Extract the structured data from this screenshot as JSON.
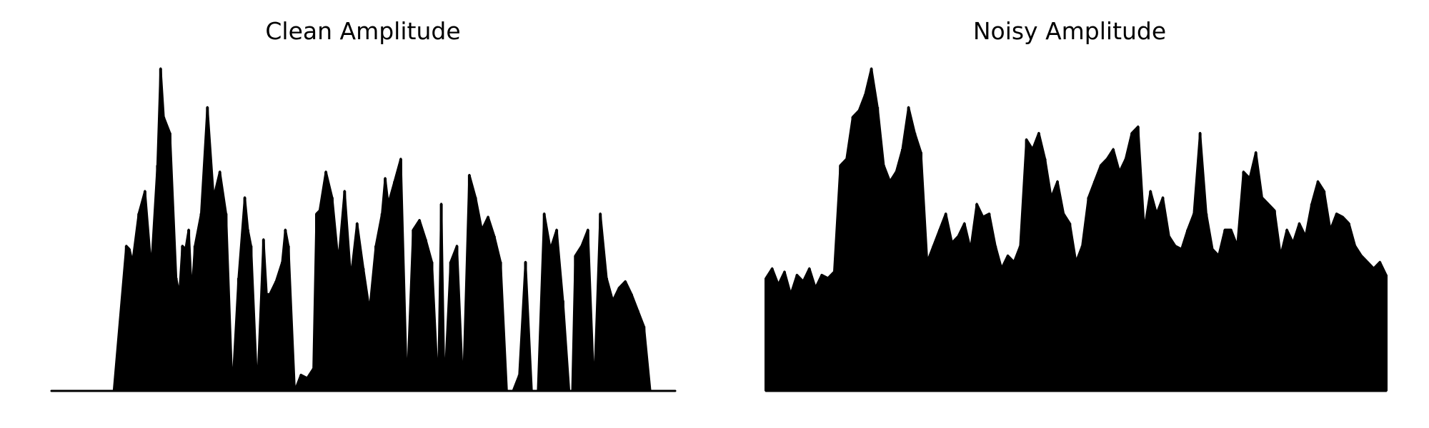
{
  "chart_data": [
    {
      "type": "area",
      "title": "Clean Amplitude",
      "xlabel": "",
      "ylabel": "",
      "axes_visible": false,
      "grid": false,
      "line_color": "#000000",
      "fill_color": "#000000",
      "x": [
        0.0,
        0.1,
        0.12,
        0.125,
        0.13,
        0.14,
        0.15,
        0.16,
        0.17,
        0.175,
        0.18,
        0.19,
        0.2,
        0.205,
        0.21,
        0.215,
        0.22,
        0.225,
        0.23,
        0.24,
        0.25,
        0.26,
        0.27,
        0.28,
        0.29,
        0.3,
        0.31,
        0.315,
        0.32,
        0.33,
        0.34,
        0.345,
        0.35,
        0.36,
        0.37,
        0.375,
        0.38,
        0.39,
        0.4,
        0.41,
        0.42,
        0.425,
        0.43,
        0.44,
        0.45,
        0.46,
        0.47,
        0.48,
        0.49,
        0.5,
        0.51,
        0.52,
        0.53,
        0.535,
        0.54,
        0.55,
        0.56,
        0.57,
        0.58,
        0.59,
        0.6,
        0.61,
        0.62,
        0.625,
        0.63,
        0.64,
        0.65,
        0.66,
        0.67,
        0.68,
        0.69,
        0.7,
        0.71,
        0.72,
        0.73,
        0.74,
        0.75,
        0.76,
        0.77,
        0.78,
        0.79,
        0.8,
        0.81,
        0.82,
        0.83,
        0.835,
        0.84,
        0.85,
        0.86,
        0.87,
        0.88,
        0.89,
        0.9,
        0.91,
        0.92,
        0.93,
        0.94,
        0.95,
        0.96,
        0.97,
        0.98,
        1.0
      ],
      "values": [
        0.0,
        0.0,
        0.45,
        0.44,
        0.4,
        0.55,
        0.62,
        0.38,
        0.7,
        1.0,
        0.85,
        0.8,
        0.35,
        0.3,
        0.45,
        0.44,
        0.5,
        0.3,
        0.45,
        0.55,
        0.88,
        0.6,
        0.68,
        0.55,
        0.0,
        0.35,
        0.6,
        0.5,
        0.45,
        0.0,
        0.47,
        0.3,
        0.3,
        0.34,
        0.4,
        0.5,
        0.45,
        0.0,
        0.05,
        0.04,
        0.07,
        0.55,
        0.56,
        0.68,
        0.6,
        0.4,
        0.62,
        0.35,
        0.52,
        0.38,
        0.25,
        0.45,
        0.55,
        0.66,
        0.58,
        0.65,
        0.72,
        0.0,
        0.5,
        0.53,
        0.47,
        0.4,
        0.0,
        0.58,
        0.0,
        0.4,
        0.45,
        0.0,
        0.67,
        0.6,
        0.5,
        0.54,
        0.48,
        0.4,
        0.0,
        0.0,
        0.05,
        0.4,
        0.0,
        0.0,
        0.55,
        0.44,
        0.5,
        0.28,
        0.0,
        0.0,
        0.42,
        0.45,
        0.5,
        0.0,
        0.55,
        0.35,
        0.28,
        0.32,
        0.34,
        0.3,
        0.25,
        0.2,
        0.0,
        0.0,
        0.0,
        0.0
      ],
      "ylim": [
        0,
        1.0
      ]
    },
    {
      "type": "area",
      "title": "Noisy Amplitude",
      "xlabel": "",
      "ylabel": "",
      "axes_visible": false,
      "grid": false,
      "line_color": "#000000",
      "fill_color": "#000000",
      "x": [
        0.0,
        0.01,
        0.02,
        0.03,
        0.04,
        0.05,
        0.06,
        0.07,
        0.08,
        0.09,
        0.1,
        0.11,
        0.12,
        0.13,
        0.14,
        0.15,
        0.16,
        0.17,
        0.18,
        0.19,
        0.2,
        0.21,
        0.22,
        0.23,
        0.24,
        0.25,
        0.26,
        0.27,
        0.28,
        0.29,
        0.3,
        0.31,
        0.32,
        0.33,
        0.34,
        0.35,
        0.36,
        0.37,
        0.38,
        0.39,
        0.4,
        0.41,
        0.42,
        0.43,
        0.44,
        0.45,
        0.46,
        0.47,
        0.48,
        0.49,
        0.5,
        0.51,
        0.52,
        0.53,
        0.54,
        0.55,
        0.56,
        0.57,
        0.58,
        0.59,
        0.6,
        0.61,
        0.62,
        0.63,
        0.64,
        0.65,
        0.66,
        0.67,
        0.68,
        0.69,
        0.7,
        0.71,
        0.72,
        0.73,
        0.74,
        0.75,
        0.76,
        0.77,
        0.78,
        0.79,
        0.8,
        0.81,
        0.82,
        0.83,
        0.84,
        0.85,
        0.86,
        0.87,
        0.88,
        0.89,
        0.9,
        0.91,
        0.92,
        0.93,
        0.94,
        0.95,
        0.96,
        0.97,
        0.98,
        0.99,
        1.0
      ],
      "values": [
        0.35,
        0.38,
        0.33,
        0.37,
        0.3,
        0.36,
        0.34,
        0.38,
        0.32,
        0.36,
        0.35,
        0.37,
        0.7,
        0.72,
        0.85,
        0.87,
        0.92,
        1.0,
        0.88,
        0.7,
        0.65,
        0.68,
        0.75,
        0.88,
        0.8,
        0.74,
        0.4,
        0.45,
        0.5,
        0.55,
        0.46,
        0.48,
        0.52,
        0.44,
        0.58,
        0.54,
        0.55,
        0.45,
        0.38,
        0.42,
        0.4,
        0.45,
        0.78,
        0.75,
        0.8,
        0.72,
        0.6,
        0.65,
        0.55,
        0.52,
        0.4,
        0.45,
        0.6,
        0.65,
        0.7,
        0.72,
        0.75,
        0.68,
        0.72,
        0.8,
        0.82,
        0.5,
        0.62,
        0.55,
        0.6,
        0.48,
        0.45,
        0.44,
        0.5,
        0.55,
        0.8,
        0.55,
        0.44,
        0.42,
        0.5,
        0.5,
        0.45,
        0.68,
        0.66,
        0.74,
        0.6,
        0.58,
        0.56,
        0.42,
        0.5,
        0.46,
        0.52,
        0.48,
        0.58,
        0.65,
        0.62,
        0.5,
        0.55,
        0.54,
        0.52,
        0.45,
        0.42,
        0.4,
        0.38,
        0.4,
        0.36
      ],
      "ylim": [
        0,
        1.0
      ]
    }
  ]
}
